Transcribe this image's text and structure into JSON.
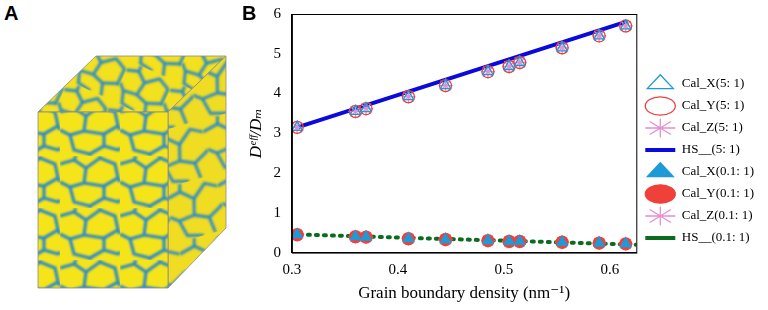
{
  "panel_a": {
    "label": "A"
  },
  "chart_data": {
    "type": "scatter",
    "label": "B",
    "x_label": "Grain boundary density (nm⁻¹)",
    "y_label": "Dᵉᶠᶠ/Dₘ",
    "xlim": [
      0.3,
      0.625
    ],
    "xticks": [
      0.3,
      0.4,
      0.5,
      0.6
    ],
    "ylim": [
      0,
      6
    ],
    "yticks": [
      0,
      1,
      2,
      3,
      4,
      5,
      6
    ],
    "grid": false,
    "legend": "right",
    "series": [
      {
        "name": "Cal_X(5: 1)",
        "type": "scatter",
        "marker": "open_triangle",
        "color": "#1e9ad6",
        "x": [
          0.305,
          0.36,
          0.37,
          0.41,
          0.445,
          0.485,
          0.505,
          0.515,
          0.555,
          0.59,
          0.615
        ],
        "values": [
          3.15,
          3.55,
          3.62,
          3.92,
          4.2,
          4.55,
          4.68,
          4.78,
          5.15,
          5.45,
          5.7
        ]
      },
      {
        "name": "Cal_Y(5: 1)",
        "type": "scatter",
        "marker": "open_circle",
        "color": "#e8413c",
        "x": [
          0.305,
          0.36,
          0.37,
          0.41,
          0.445,
          0.485,
          0.505,
          0.515,
          0.555,
          0.59,
          0.615
        ],
        "values": [
          3.15,
          3.55,
          3.62,
          3.92,
          4.2,
          4.55,
          4.68,
          4.78,
          5.15,
          5.45,
          5.7
        ]
      },
      {
        "name": "Cal_Z(5: 1)",
        "type": "scatter",
        "marker": "open_star",
        "color": "#e48fd0",
        "x": [
          0.305,
          0.36,
          0.37,
          0.41,
          0.445,
          0.485,
          0.505,
          0.515,
          0.555,
          0.59,
          0.615
        ],
        "values": [
          3.15,
          3.55,
          3.62,
          3.92,
          4.2,
          4.55,
          4.68,
          4.78,
          5.15,
          5.45,
          5.7
        ]
      },
      {
        "name": "HS__(5: 1)",
        "type": "line",
        "marker": "none",
        "line_style": "solid",
        "color": "#0a0adc",
        "x": [
          0.305,
          0.615
        ],
        "values": [
          3.15,
          5.8
        ]
      },
      {
        "name": "Cal_X(0.1: 1)",
        "type": "scatter",
        "marker": "triangle",
        "color": "#1e9ad6",
        "x": [
          0.305,
          0.36,
          0.37,
          0.41,
          0.445,
          0.485,
          0.505,
          0.515,
          0.555,
          0.59,
          0.615
        ],
        "values": [
          0.45,
          0.4,
          0.39,
          0.35,
          0.33,
          0.3,
          0.28,
          0.28,
          0.26,
          0.24,
          0.22
        ]
      },
      {
        "name": "Cal_Y(0.1: 1)",
        "type": "scatter",
        "marker": "circle",
        "color": "#f0403a",
        "x": [
          0.305,
          0.36,
          0.37,
          0.41,
          0.445,
          0.485,
          0.505,
          0.515,
          0.555,
          0.59,
          0.615
        ],
        "values": [
          0.45,
          0.4,
          0.39,
          0.35,
          0.33,
          0.3,
          0.28,
          0.28,
          0.26,
          0.24,
          0.22
        ]
      },
      {
        "name": "Cal_Z(0.1: 1)",
        "type": "scatter",
        "marker": "star",
        "color": "#e48fd0",
        "x": [
          0.305,
          0.36,
          0.37,
          0.41,
          0.445,
          0.485,
          0.505,
          0.515,
          0.555,
          0.59,
          0.615
        ],
        "values": [
          0.45,
          0.4,
          0.39,
          0.35,
          0.33,
          0.3,
          0.28,
          0.28,
          0.26,
          0.24,
          0.22
        ]
      },
      {
        "name": "HS__(0.1: 1)",
        "type": "line",
        "marker": "none",
        "line_style": "dotted",
        "color": "#0b6b1f",
        "x": [
          0.3,
          0.625
        ],
        "values": [
          0.46,
          0.2
        ]
      }
    ]
  }
}
